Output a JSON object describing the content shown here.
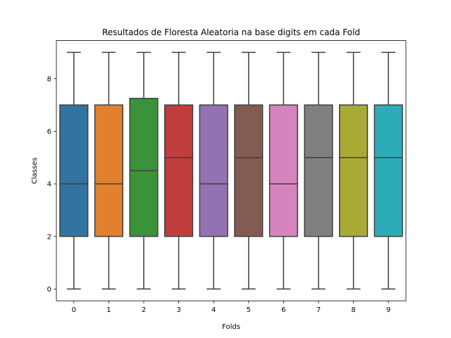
{
  "chart_data": {
    "type": "box",
    "title": "Resultados de Floresta Aleatoria na base digits em cada Fold",
    "xlabel": "Folds",
    "ylabel": "Classes",
    "categories": [
      "0",
      "1",
      "2",
      "3",
      "4",
      "5",
      "6",
      "7",
      "8",
      "9"
    ],
    "boxes": [
      {
        "category": "0",
        "min": 0,
        "q1": 2,
        "median": 4,
        "q3": 7,
        "max": 9,
        "color": "#3274a1"
      },
      {
        "category": "1",
        "min": 0,
        "q1": 2,
        "median": 4,
        "q3": 7,
        "max": 9,
        "color": "#e1812c"
      },
      {
        "category": "2",
        "min": 0,
        "q1": 2,
        "median": 4.5,
        "q3": 7.25,
        "max": 9,
        "color": "#3a923a"
      },
      {
        "category": "3",
        "min": 0,
        "q1": 2,
        "median": 5,
        "q3": 7,
        "max": 9,
        "color": "#c03d3e"
      },
      {
        "category": "4",
        "min": 0,
        "q1": 2,
        "median": 4,
        "q3": 7,
        "max": 9,
        "color": "#9372b2"
      },
      {
        "category": "5",
        "min": 0,
        "q1": 2,
        "median": 5,
        "q3": 7,
        "max": 9,
        "color": "#845b53"
      },
      {
        "category": "6",
        "min": 0,
        "q1": 2,
        "median": 4,
        "q3": 7,
        "max": 9,
        "color": "#d684bd"
      },
      {
        "category": "7",
        "min": 0,
        "q1": 2,
        "median": 5,
        "q3": 7,
        "max": 9,
        "color": "#7f7f7f"
      },
      {
        "category": "8",
        "min": 0,
        "q1": 2,
        "median": 5,
        "q3": 7,
        "max": 9,
        "color": "#a9aa35"
      },
      {
        "category": "9",
        "min": 0,
        "q1": 2,
        "median": 5,
        "q3": 7,
        "max": 9,
        "color": "#2eabb8"
      }
    ],
    "yticks": [
      0,
      2,
      4,
      6,
      8
    ],
    "ylim": [
      -0.45,
      9.45
    ],
    "grid": false,
    "line_color": "#3f3f3f"
  }
}
